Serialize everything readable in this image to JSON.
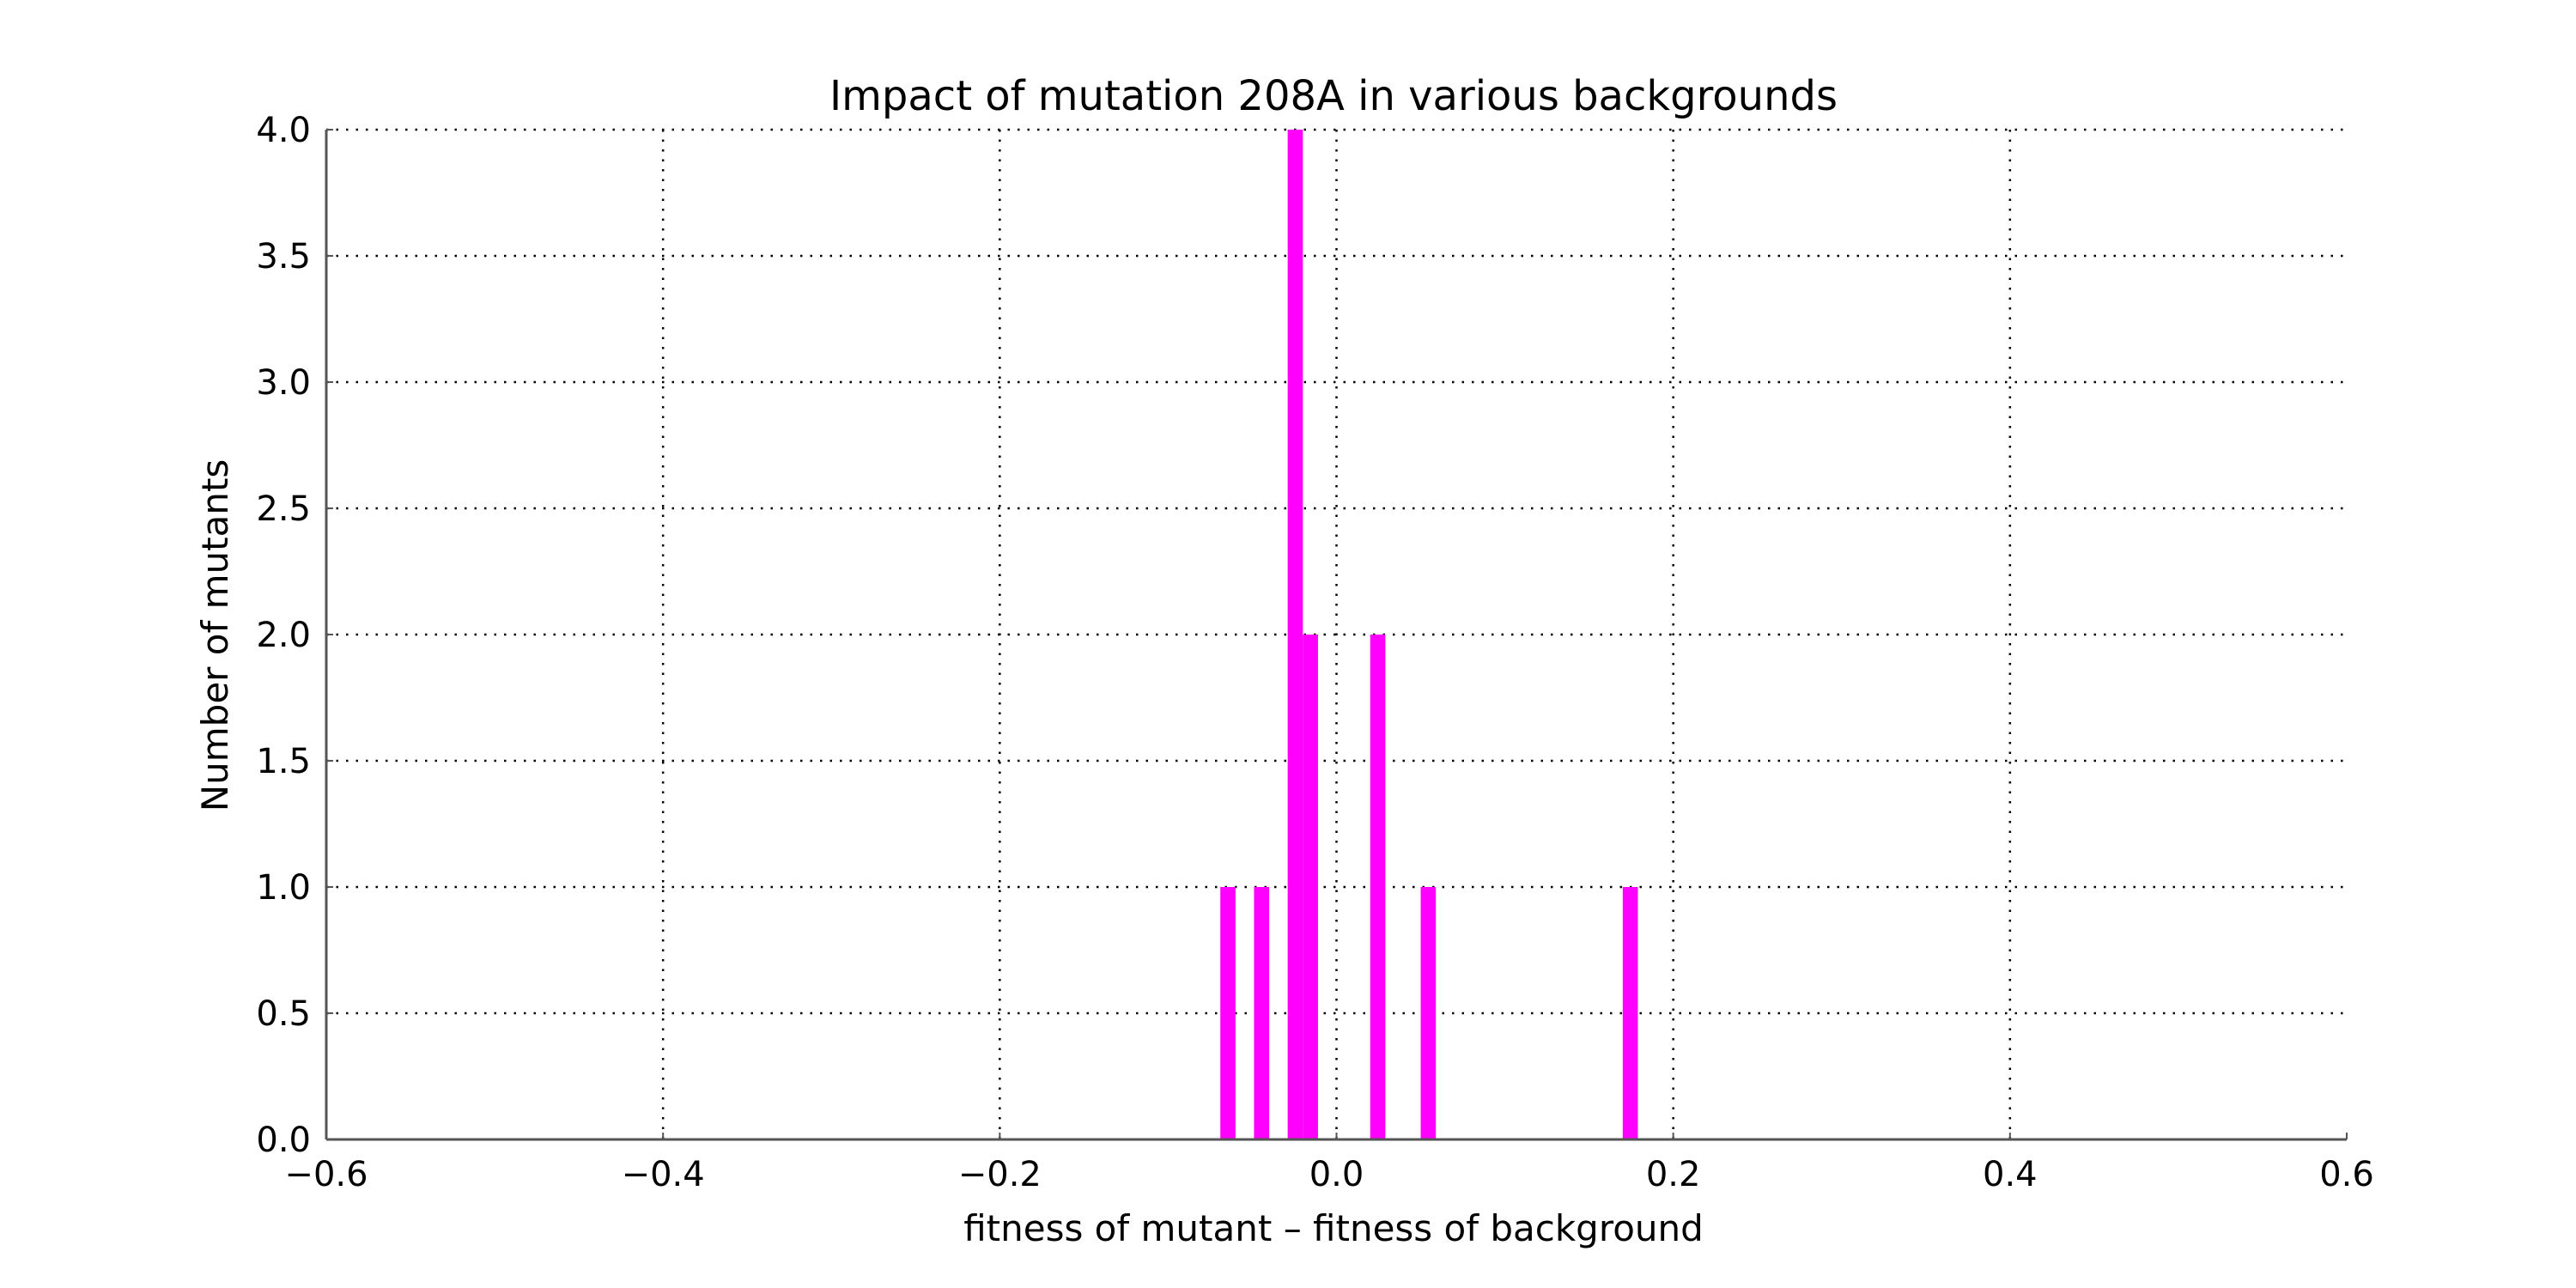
{
  "chart_data": {
    "type": "bar",
    "title": "Impact of mutation 208A in various backgrounds",
    "xlabel": "fitness of mutant  –  fitness of background",
    "ylabel": "Number of mutants",
    "xlim": [
      -0.6,
      0.6
    ],
    "ylim": [
      0,
      4.0
    ],
    "x_ticks": [
      -0.6,
      -0.4,
      -0.2,
      0.0,
      0.2,
      0.4,
      0.6
    ],
    "x_tick_labels": [
      "−0.6",
      "−0.4",
      "−0.2",
      "0.0",
      "0.2",
      "0.4",
      "0.6"
    ],
    "y_ticks": [
      0.0,
      0.5,
      1.0,
      1.5,
      2.0,
      2.5,
      3.0,
      3.5,
      4.0
    ],
    "y_tick_labels": [
      "0.0",
      "0.5",
      "1.0",
      "1.5",
      "2.0",
      "2.5",
      "3.0",
      "3.5",
      "4.0"
    ],
    "grid": true,
    "bar_color": "#ff00ff",
    "bins": [
      {
        "x0": -0.069,
        "x1": -0.06,
        "count": 1
      },
      {
        "x0": -0.049,
        "x1": -0.04,
        "count": 1
      },
      {
        "x0": -0.029,
        "x1": -0.02,
        "count": 4
      },
      {
        "x0": -0.02,
        "x1": -0.011,
        "count": 2
      },
      {
        "x0": 0.02,
        "x1": 0.029,
        "count": 2
      },
      {
        "x0": 0.05,
        "x1": 0.059,
        "count": 1
      },
      {
        "x0": 0.17,
        "x1": 0.179,
        "count": 1
      }
    ]
  }
}
